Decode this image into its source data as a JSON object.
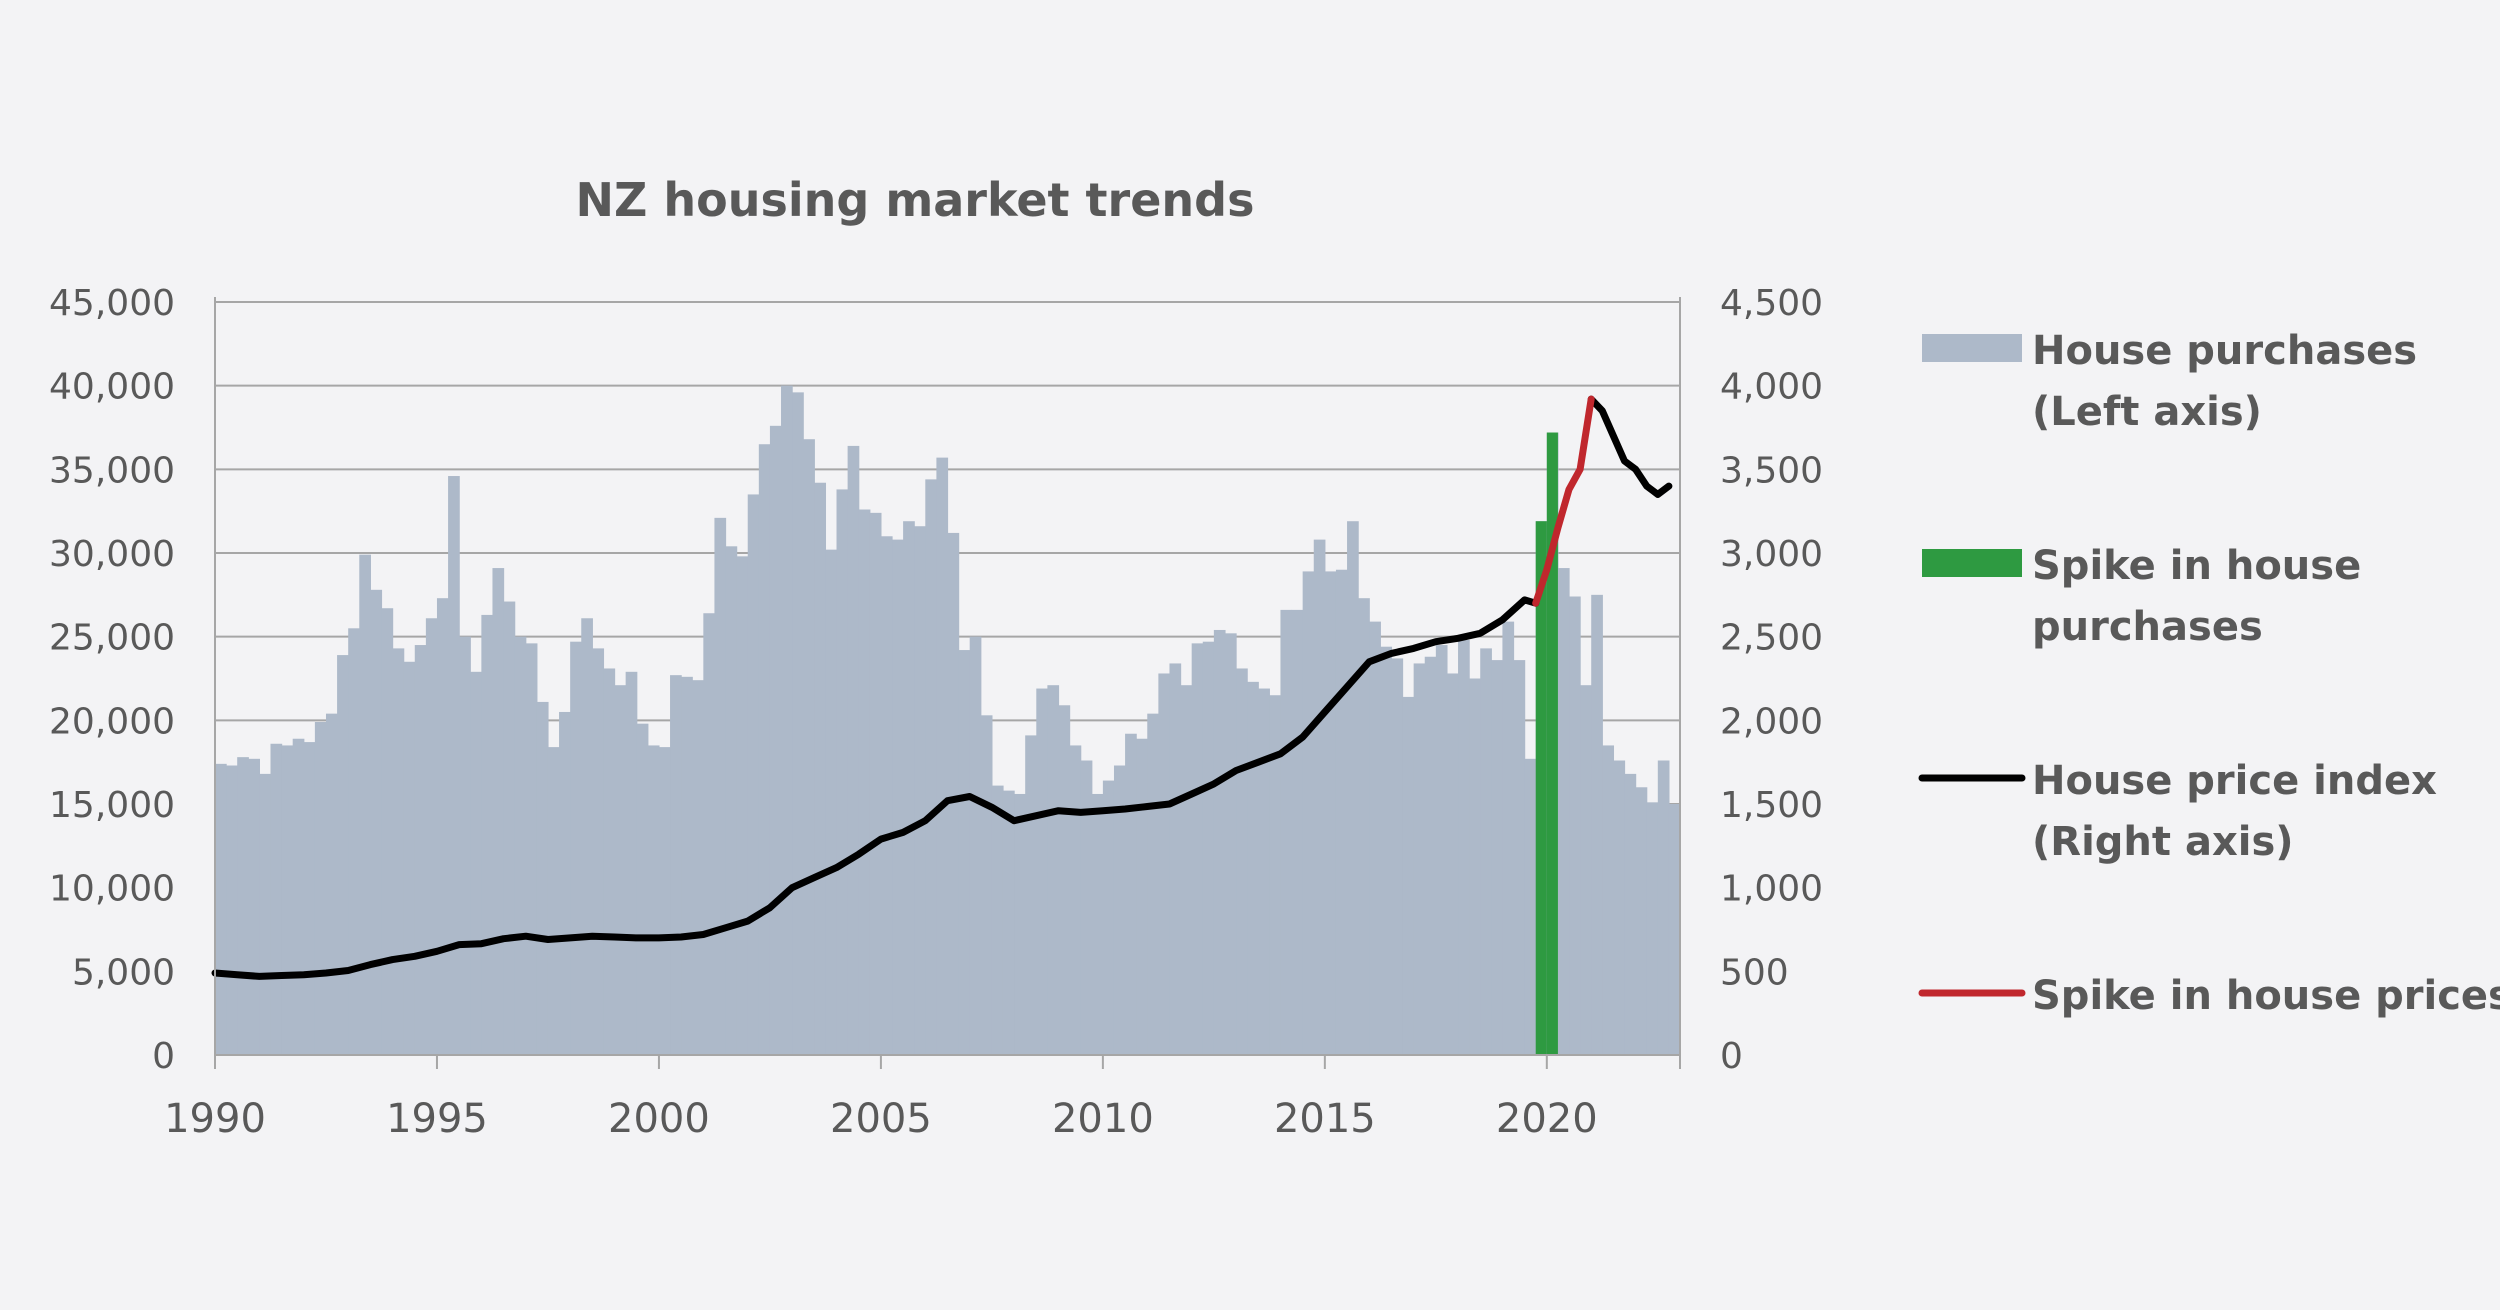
{
  "chart_data": {
    "type": "bar+line",
    "title": "NZ housing market trends",
    "x_label": "",
    "colors": {
      "purchases": "#adb9c9",
      "spike_purchases": "#2e9a41",
      "price_index": "#000000",
      "spike_prices": "#c0272d",
      "grid": "#a6a6a6",
      "background": "#f3f3f5",
      "text": "#595959"
    },
    "left_axis": {
      "min": 0,
      "max": 45000,
      "ticks": [
        "0",
        "5,000",
        "10,000",
        "15,000",
        "20,000",
        "25,000",
        "30,000",
        "35,000",
        "40,000",
        "45,000"
      ]
    },
    "right_axis": {
      "min": 0,
      "max": 4500,
      "ticks": [
        "0",
        "500",
        "1,000",
        "1,500",
        "2,000",
        "2,500",
        "3,000",
        "3,500",
        "4,000",
        "4,500"
      ]
    },
    "x_axis": {
      "min": 1990,
      "max": 2023,
      "ticks": [
        "1990",
        "1995",
        "2000",
        "2005",
        "2010",
        "2015",
        "2020"
      ]
    },
    "x_start_year": 1990,
    "x_period": "quarter",
    "house_purchases_left_axis": [
      17400,
      17300,
      17800,
      17700,
      16800,
      18600,
      18500,
      18900,
      18700,
      19900,
      20400,
      23900,
      25500,
      29900,
      27800,
      26700,
      24300,
      23500,
      24500,
      26100,
      27300,
      34600,
      25000,
      22900,
      26300,
      29100,
      27100,
      25000,
      24600,
      21100,
      18400,
      20500,
      24700,
      26100,
      24300,
      23100,
      22100,
      22900,
      19800,
      18500,
      18400,
      22700,
      22600,
      22400,
      26400,
      32100,
      30400,
      29800,
      33500,
      36500,
      37600,
      40000,
      39600,
      36800,
      34200,
      30200,
      33800,
      36400,
      32600,
      32400,
      31000,
      30800,
      31900,
      31600,
      34400,
      35700,
      31200,
      24200,
      25000,
      20300,
      16100,
      15800,
      15600,
      19100,
      21900,
      22100,
      20900,
      18500,
      17600,
      15600,
      16400,
      17300,
      19200,
      18900,
      20400,
      22800,
      23400,
      22100,
      24600,
      24700,
      25400,
      25200,
      23100,
      22300,
      21900,
      21500,
      26600,
      26600,
      28900,
      30800,
      28900,
      29000,
      31900,
      27300,
      25900,
      24400,
      23700,
      21400,
      23400,
      23800,
      24500,
      22800,
      24800,
      22500,
      24300,
      23600,
      25900,
      23600,
      17700,
      31900,
      37200,
      29100,
      27400,
      22100,
      27500,
      18500,
      17600,
      16800,
      16000,
      15100,
      17600,
      15000
    ],
    "spike_in_house_purchases": [
      {
        "x": 2019.75,
        "value": 31900
      },
      {
        "x": 2020.0,
        "value": 37200
      }
    ],
    "house_price_index_right_axis": [
      [
        1990.0,
        490
      ],
      [
        1990.5,
        480
      ],
      [
        1991.0,
        470
      ],
      [
        1991.5,
        475
      ],
      [
        1992.0,
        480
      ],
      [
        1992.5,
        490
      ],
      [
        1993.0,
        505
      ],
      [
        1993.5,
        540
      ],
      [
        1994.0,
        570
      ],
      [
        1994.5,
        590
      ],
      [
        1995.0,
        620
      ],
      [
        1995.5,
        660
      ],
      [
        1996.0,
        665
      ],
      [
        1996.5,
        695
      ],
      [
        1997.0,
        710
      ],
      [
        1997.5,
        690
      ],
      [
        1998.0,
        700
      ],
      [
        1998.5,
        710
      ],
      [
        1999.0,
        705
      ],
      [
        1999.5,
        700
      ],
      [
        2000.0,
        700
      ],
      [
        2000.5,
        705
      ],
      [
        2001.0,
        720
      ],
      [
        2001.5,
        760
      ],
      [
        2002.0,
        800
      ],
      [
        2002.5,
        880
      ],
      [
        2003.0,
        1000
      ],
      [
        2003.5,
        1060
      ],
      [
        2004.0,
        1120
      ],
      [
        2004.5,
        1200
      ],
      [
        2005.0,
        1290
      ],
      [
        2005.5,
        1330
      ],
      [
        2006.0,
        1400
      ],
      [
        2006.5,
        1520
      ],
      [
        2007.0,
        1545
      ],
      [
        2007.5,
        1480
      ],
      [
        2008.0,
        1400
      ],
      [
        2008.5,
        1430
      ],
      [
        2009.0,
        1460
      ],
      [
        2009.5,
        1450
      ],
      [
        2010.0,
        1460
      ],
      [
        2010.5,
        1470
      ],
      [
        2011.0,
        1485
      ],
      [
        2011.5,
        1500
      ],
      [
        2012.0,
        1560
      ],
      [
        2012.5,
        1620
      ],
      [
        2013.0,
        1700
      ],
      [
        2013.5,
        1750
      ],
      [
        2014.0,
        1800
      ],
      [
        2014.5,
        1900
      ],
      [
        2015.0,
        2050
      ],
      [
        2015.5,
        2200
      ],
      [
        2016.0,
        2350
      ],
      [
        2016.5,
        2400
      ],
      [
        2017.0,
        2430
      ],
      [
        2017.5,
        2470
      ],
      [
        2018.0,
        2490
      ],
      [
        2018.5,
        2520
      ],
      [
        2019.0,
        2600
      ],
      [
        2019.5,
        2720
      ],
      [
        2019.75,
        2700
      ]
    ],
    "spike_in_house_prices": [
      [
        2019.75,
        2700
      ],
      [
        2020.0,
        2900
      ],
      [
        2020.25,
        3150
      ],
      [
        2020.5,
        3380
      ],
      [
        2020.75,
        3500
      ],
      [
        2021.0,
        3920
      ]
    ],
    "house_price_index_after": [
      [
        2021.0,
        3920
      ],
      [
        2021.25,
        3850
      ],
      [
        2021.5,
        3700
      ],
      [
        2021.75,
        3550
      ],
      [
        2022.0,
        3500
      ],
      [
        2022.25,
        3400
      ],
      [
        2022.5,
        3350
      ],
      [
        2022.75,
        3400
      ]
    ],
    "legend": [
      {
        "key": "purchases",
        "line1": "House purchases",
        "line2": "(Left axis)",
        "swatch": "bar"
      },
      {
        "key": "spike_purchases",
        "line1": "Spike in house",
        "line2": "purchases",
        "swatch": "bar"
      },
      {
        "key": "price_index",
        "line1": "House price index",
        "line2": "(Right axis)",
        "swatch": "line"
      },
      {
        "key": "spike_prices",
        "line1": "Spike in house prices",
        "line2": "",
        "swatch": "line"
      }
    ]
  }
}
